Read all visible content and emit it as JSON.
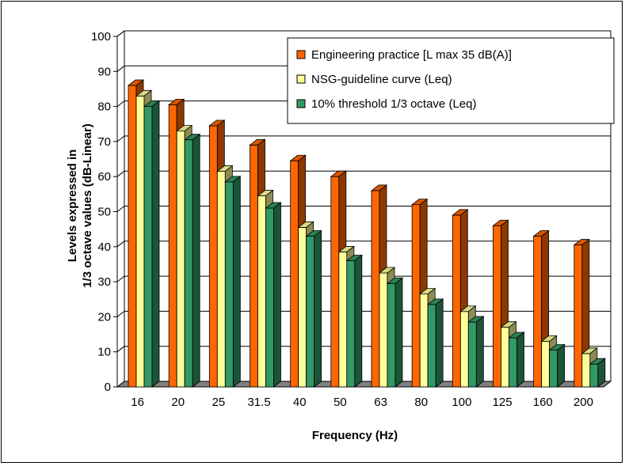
{
  "chart_data": {
    "type": "bar",
    "style": "3d-clustered",
    "xlabel": "Frequency (Hz)",
    "ylabel_line1": "Levels expressed in",
    "ylabel_line2": "1/3 octave values (dB-Linear)",
    "ylim": [
      0,
      100
    ],
    "yticks": [
      "0",
      "10",
      "20",
      "30",
      "40",
      "50",
      "60",
      "70",
      "80",
      "90",
      "100"
    ],
    "grid": true,
    "legend_position": "top-right",
    "categories": [
      "16",
      "20",
      "25",
      "31.5",
      "40",
      "50",
      "63",
      "80",
      "100",
      "125",
      "160",
      "200"
    ],
    "series": [
      {
        "name": "Engineering practice [L max 35 dB(A)]",
        "color": "#FF6600",
        "values": [
          86,
          80.5,
          74.5,
          69,
          64.5,
          60,
          56,
          52,
          49,
          46,
          43,
          40.5
        ]
      },
      {
        "name": "NSG-guideline curve (Leq)",
        "color": "#FFFF99",
        "values": [
          83,
          73,
          61.5,
          54.5,
          45.5,
          38.5,
          32.5,
          26.5,
          21.5,
          17,
          13,
          9.5
        ]
      },
      {
        "name": "10% threshold 1/3 octave (Leq)",
        "color": "#339966",
        "values": [
          80,
          70.5,
          58.5,
          51,
          43,
          36,
          29.5,
          23.5,
          18.5,
          14,
          10.5,
          6.5
        ]
      }
    ]
  }
}
